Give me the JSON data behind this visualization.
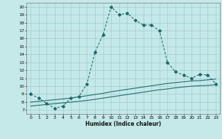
{
  "xlabel": "Humidex (Indice chaleur)",
  "background_color": "#c5e8e8",
  "grid_color": "#9ecece",
  "line_color": "#1a6b6b",
  "xlim": [
    -0.5,
    23.5
  ],
  "ylim": [
    6.5,
    20.5
  ],
  "xticks": [
    0,
    1,
    2,
    3,
    4,
    5,
    6,
    7,
    8,
    9,
    10,
    11,
    12,
    13,
    14,
    15,
    16,
    17,
    18,
    19,
    20,
    21,
    22,
    23
  ],
  "yticks": [
    7,
    8,
    9,
    10,
    11,
    12,
    13,
    14,
    15,
    16,
    17,
    18,
    19,
    20
  ],
  "series1_x": [
    0,
    1,
    2,
    3,
    4,
    5,
    6,
    7,
    8,
    9,
    10,
    11,
    12,
    13,
    14,
    15,
    16,
    17,
    18,
    19,
    20,
    21,
    22,
    23
  ],
  "series1_y": [
    9.0,
    8.5,
    7.8,
    7.2,
    7.5,
    8.5,
    8.7,
    10.3,
    14.3,
    16.5,
    20.0,
    19.0,
    19.2,
    18.3,
    17.7,
    17.7,
    17.0,
    13.0,
    11.8,
    11.4,
    11.0,
    11.5,
    11.4,
    10.3
  ],
  "series2_x": [
    0,
    1,
    2,
    3,
    4,
    5,
    6,
    7,
    8,
    9,
    10,
    11,
    12,
    13,
    14,
    15,
    16,
    17,
    18,
    19,
    20,
    21,
    22,
    23
  ],
  "series2_y": [
    7.5,
    7.6,
    7.7,
    7.8,
    7.9,
    8.0,
    8.1,
    8.2,
    8.35,
    8.5,
    8.65,
    8.8,
    8.95,
    9.1,
    9.25,
    9.4,
    9.55,
    9.65,
    9.8,
    9.9,
    10.0,
    10.05,
    10.1,
    10.2
  ],
  "series3_x": [
    0,
    1,
    2,
    3,
    4,
    5,
    6,
    7,
    8,
    9,
    10,
    11,
    12,
    13,
    14,
    15,
    16,
    17,
    18,
    19,
    20,
    21,
    22,
    23
  ],
  "series3_y": [
    8.0,
    8.1,
    8.2,
    8.3,
    8.4,
    8.5,
    8.65,
    8.8,
    8.95,
    9.1,
    9.3,
    9.45,
    9.6,
    9.75,
    9.9,
    10.05,
    10.2,
    10.35,
    10.45,
    10.55,
    10.65,
    10.7,
    10.8,
    10.9
  ]
}
